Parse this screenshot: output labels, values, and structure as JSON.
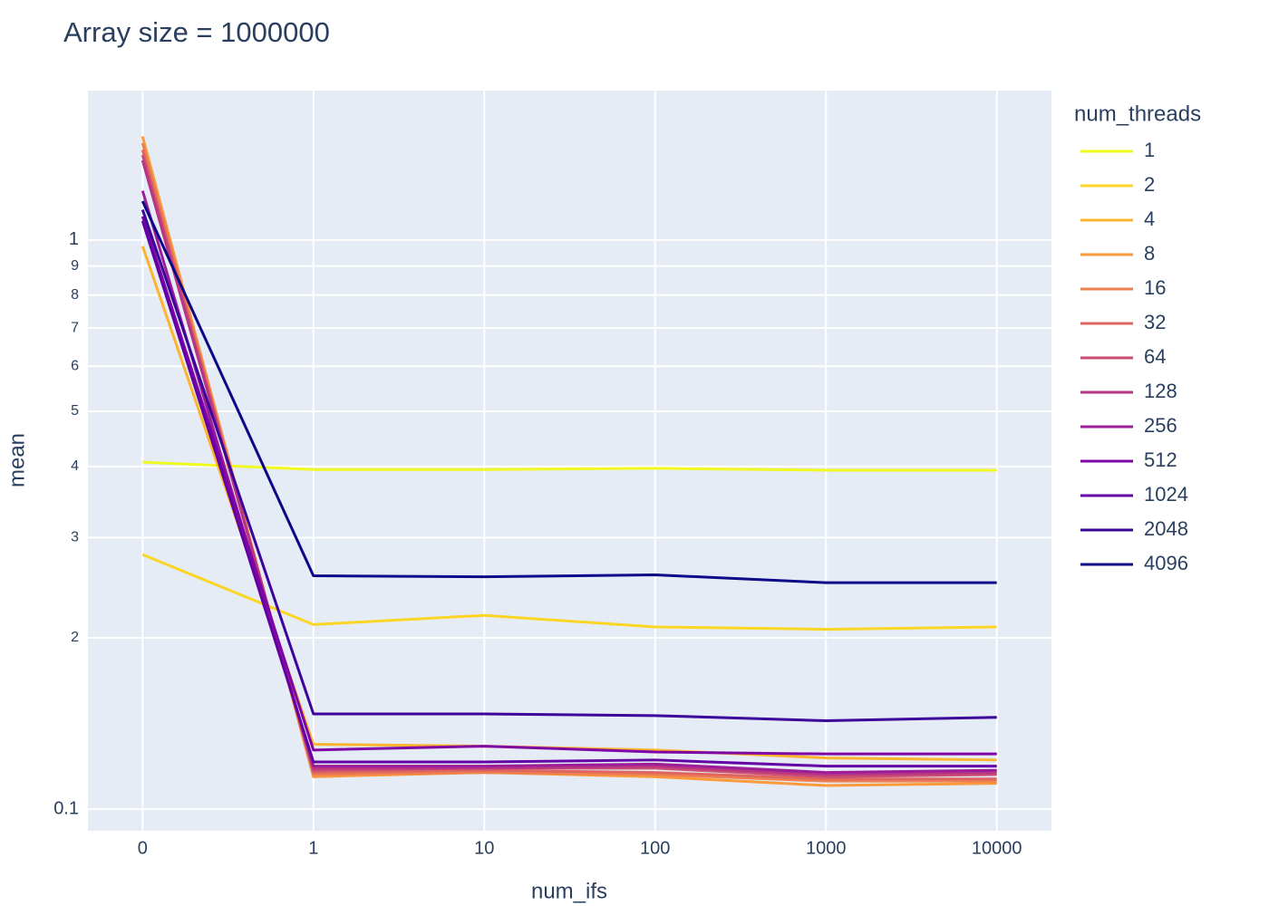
{
  "chart_data": {
    "type": "line",
    "title": "Array size = 1000000",
    "x_label": "num_ifs",
    "y_label": "mean",
    "legend_title": "num_threads",
    "categories": [
      "0",
      "1",
      "10",
      "100",
      "1000",
      "10000"
    ],
    "ylog": true,
    "grid": true,
    "legend_position": "right",
    "ylim": [
      0.0916,
      1.83
    ],
    "yticks": [
      0.1,
      {
        "value": 0.2,
        "label": "2"
      },
      {
        "value": 0.3,
        "label": "3"
      },
      {
        "value": 0.4,
        "label": "4"
      },
      {
        "value": 0.5,
        "label": "5"
      },
      {
        "value": 0.6,
        "label": "6"
      },
      {
        "value": 0.7,
        "label": "7"
      },
      {
        "value": 0.8,
        "label": "8"
      },
      {
        "value": 0.9,
        "label": "9"
      },
      1
    ],
    "series": [
      {
        "name": "1",
        "color": "#f0f921",
        "values": [
          0.407,
          0.395,
          0.395,
          0.397,
          0.394,
          0.394
        ]
      },
      {
        "name": "2",
        "color": "#fbd524",
        "values": [
          0.28,
          0.211,
          0.219,
          0.209,
          0.207,
          0.209
        ]
      },
      {
        "name": "4",
        "color": "#fdb42f",
        "values": [
          0.975,
          0.13,
          0.129,
          0.127,
          0.123,
          0.122
        ]
      },
      {
        "name": "8",
        "color": "#fa9a3d",
        "values": [
          1.52,
          0.114,
          0.116,
          0.114,
          0.11,
          0.111
        ]
      },
      {
        "name": "16",
        "color": "#ee7f4f",
        "values": [
          1.48,
          0.115,
          0.116,
          0.115,
          0.112,
          0.112
        ]
      },
      {
        "name": "32",
        "color": "#de6560",
        "values": [
          1.44,
          0.116,
          0.117,
          0.116,
          0.113,
          0.113
        ]
      },
      {
        "name": "64",
        "color": "#cb4d72",
        "values": [
          1.41,
          0.117,
          0.118,
          0.118,
          0.114,
          0.115
        ]
      },
      {
        "name": "128",
        "color": "#b63585",
        "values": [
          1.38,
          0.118,
          0.118,
          0.119,
          0.115,
          0.116
        ]
      },
      {
        "name": "256",
        "color": "#9c1d97",
        "values": [
          1.22,
          0.119,
          0.119,
          0.12,
          0.116,
          0.117
        ]
      },
      {
        "name": "512",
        "color": "#7e05a4",
        "values": [
          1.1,
          0.127,
          0.129,
          0.126,
          0.125,
          0.125
        ]
      },
      {
        "name": "1024",
        "color": "#6200a6",
        "values": [
          1.08,
          0.121,
          0.121,
          0.122,
          0.119,
          0.119
        ]
      },
      {
        "name": "2048",
        "color": "#3b049a",
        "values": [
          1.13,
          0.147,
          0.147,
          0.146,
          0.143,
          0.145
        ]
      },
      {
        "name": "4096",
        "color": "#0d0887",
        "values": [
          1.17,
          0.257,
          0.256,
          0.258,
          0.25,
          0.25
        ]
      }
    ]
  }
}
